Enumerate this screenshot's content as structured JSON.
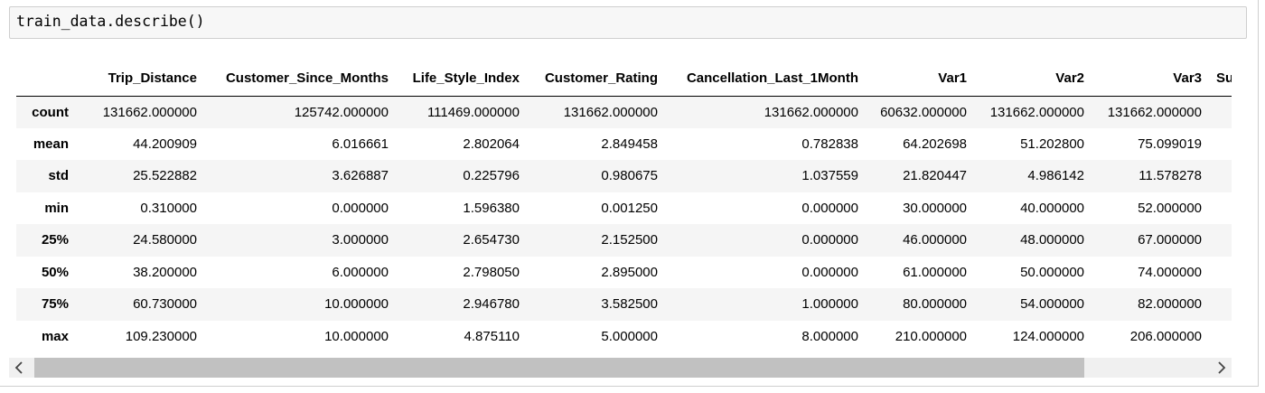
{
  "input": {
    "code": "train_data.describe()"
  },
  "table": {
    "columns": [
      "Trip_Distance",
      "Customer_Since_Months",
      "Life_Style_Index",
      "Customer_Rating",
      "Cancellation_Last_1Month",
      "Var1",
      "Var2",
      "Var3",
      "Surg"
    ],
    "rows": [
      {
        "label": "count",
        "values": [
          "131662.000000",
          "125742.000000",
          "111469.000000",
          "131662.000000",
          "131662.000000",
          "60632.000000",
          "131662.000000",
          "131662.000000",
          ""
        ]
      },
      {
        "label": "mean",
        "values": [
          "44.200909",
          "6.016661",
          "2.802064",
          "2.849458",
          "0.782838",
          "64.202698",
          "51.202800",
          "75.099019",
          ""
        ]
      },
      {
        "label": "std",
        "values": [
          "25.522882",
          "3.626887",
          "0.225796",
          "0.980675",
          "1.037559",
          "21.820447",
          "4.986142",
          "11.578278",
          ""
        ]
      },
      {
        "label": "min",
        "values": [
          "0.310000",
          "0.000000",
          "1.596380",
          "0.001250",
          "0.000000",
          "30.000000",
          "40.000000",
          "52.000000",
          ""
        ]
      },
      {
        "label": "25%",
        "values": [
          "24.580000",
          "3.000000",
          "2.654730",
          "2.152500",
          "0.000000",
          "46.000000",
          "48.000000",
          "67.000000",
          ""
        ]
      },
      {
        "label": "50%",
        "values": [
          "38.200000",
          "6.000000",
          "2.798050",
          "2.895000",
          "0.000000",
          "61.000000",
          "50.000000",
          "74.000000",
          ""
        ]
      },
      {
        "label": "75%",
        "values": [
          "60.730000",
          "10.000000",
          "2.946780",
          "3.582500",
          "1.000000",
          "80.000000",
          "54.000000",
          "82.000000",
          ""
        ]
      },
      {
        "label": "max",
        "values": [
          "109.230000",
          "10.000000",
          "4.875110",
          "5.000000",
          "8.000000",
          "210.000000",
          "124.000000",
          "206.000000",
          ""
        ]
      }
    ]
  },
  "scrollbar": {
    "left_icon": "chevron-left-icon",
    "right_icon": "chevron-right-icon",
    "position": 0.0
  }
}
